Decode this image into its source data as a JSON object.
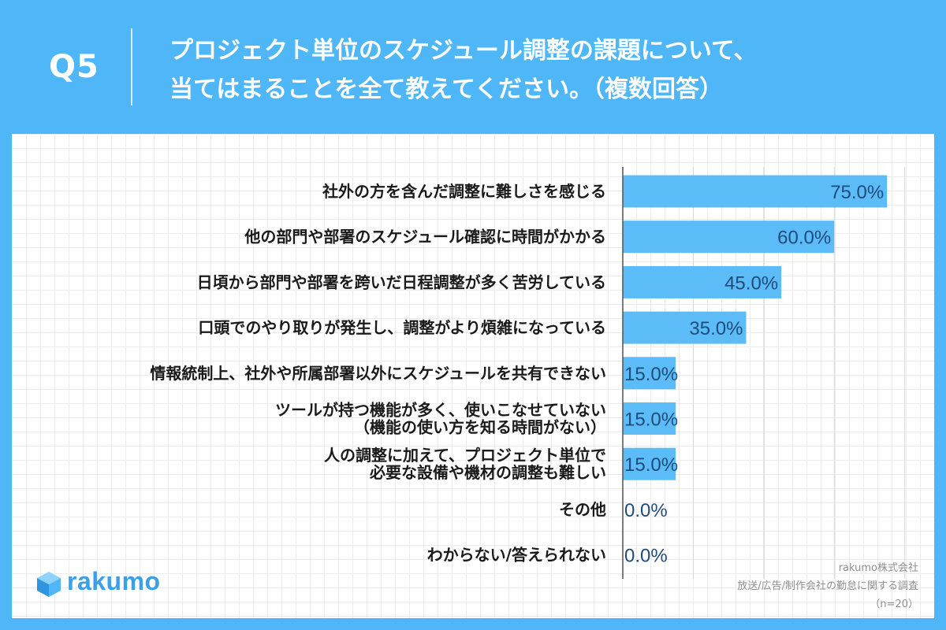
{
  "header": {
    "q_number": "Q5",
    "title_line1": "プロジェクト単位のスケジュール調整の課題について、",
    "title_line2": "当てはまることを全て教えてください。（複数回答）"
  },
  "brand": {
    "name": "rakumo"
  },
  "source": {
    "company": "rakumo株式会社",
    "survey": "放送/広告/制作会社の勤怠に関する調査",
    "sample": "（n=20）"
  },
  "colors": {
    "background": "#4fb6f7",
    "bar": "#5bbcf8",
    "value_text": "#1f4c7a",
    "label_text": "#1a1a1a"
  },
  "chart_data": {
    "type": "bar",
    "orientation": "horizontal",
    "grid": true,
    "categories": [
      [
        "社外の方を含んだ調整に難しさを感じる"
      ],
      [
        "他の部門や部署のスケジュール確認に時間がかかる"
      ],
      [
        "日頃から部門や部署を跨いだ日程調整が多く苦労している"
      ],
      [
        "口頭でのやり取りが発生し、調整がより煩雑になっている"
      ],
      [
        "情報統制上、社外や所属部署以外にスケジュールを共有できない"
      ],
      [
        "ツールが持つ機能が多く、使いこなせていない",
        "（機能の使い方を知る時間がない）"
      ],
      [
        "人の調整に加えて、プロジェクト単位で",
        "必要な設備や機材の調整も難しい"
      ],
      [
        "その他"
      ],
      [
        "わからない/答えられない"
      ]
    ],
    "values": [
      75.0,
      60.0,
      45.0,
      35.0,
      15.0,
      15.0,
      15.0,
      0.0,
      0.0
    ],
    "value_labels": [
      "75.0%",
      "60.0%",
      "45.0%",
      "35.0%",
      "15.0%",
      "15.0%",
      "15.0%",
      "0.0%",
      "0.0%"
    ],
    "xlim": [
      0,
      80
    ]
  }
}
